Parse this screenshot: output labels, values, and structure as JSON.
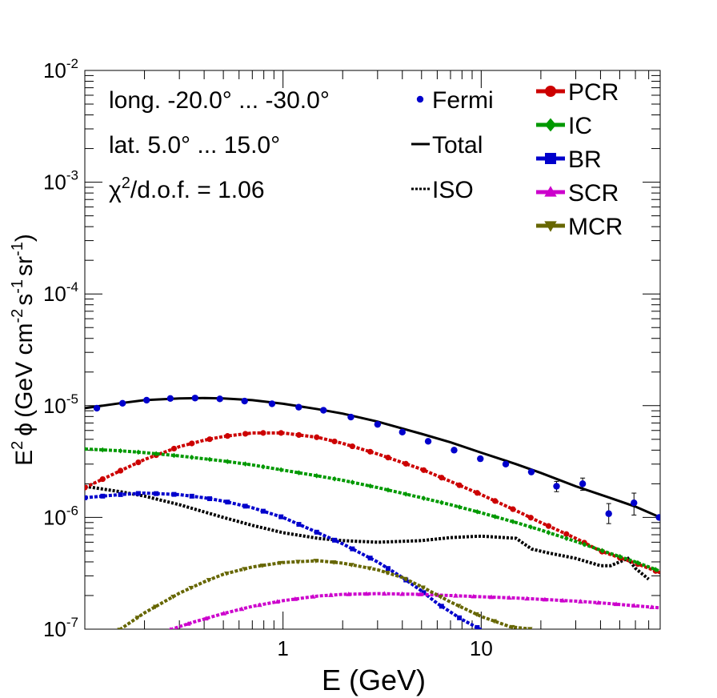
{
  "chart_data": {
    "type": "line",
    "xscale": "log",
    "yscale": "log",
    "xlim": [
      0.1,
      80
    ],
    "ylim": [
      1e-07,
      0.01
    ],
    "x_major_ticks": [
      1,
      10
    ],
    "x_tick_labels": [
      "1",
      "10"
    ],
    "y_major_ticks": [
      1e-07,
      1e-06,
      1e-05,
      0.0001,
      0.001,
      0.01
    ],
    "y_tick_labels": [
      {
        "base": "10",
        "exp": "-7"
      },
      {
        "base": "10",
        "exp": "-6"
      },
      {
        "base": "10",
        "exp": "-5"
      },
      {
        "base": "10",
        "exp": "-4"
      },
      {
        "base": "10",
        "exp": "-3"
      },
      {
        "base": "10",
        "exp": "-2"
      }
    ],
    "xlabel": "E (GeV)",
    "ylabel": {
      "prefix": "E",
      "prefix_sup": "2",
      "phi": "ϕ",
      "open": "(GeV cm",
      "sup1": "-2",
      "mid": "s",
      "sup2": "-1",
      "mid2": "sr",
      "sup3": "-1",
      "close": ")"
    },
    "annotations": {
      "longitude": "long. -20.0° ... -30.0°",
      "latitude": "lat. 5.0° ... 15.0°",
      "chi_symbol": "χ",
      "chi_sup": "2",
      "chi_rest": "/d.o.f. = 1.06"
    },
    "fermi": {
      "name": "Fermi",
      "color": "#0000cc",
      "x": [
        0.115,
        0.155,
        0.205,
        0.27,
        0.36,
        0.48,
        0.64,
        0.88,
        1.2,
        1.6,
        2.2,
        3.0,
        4.0,
        5.4,
        7.3,
        9.9,
        13.3,
        17.9,
        24,
        32.5,
        44,
        59,
        79
      ],
      "y": [
        9.5e-06,
        1.05e-05,
        1.12e-05,
        1.16e-05,
        1.17e-05,
        1.15e-05,
        1.1e-05,
        1.04e-05,
        9.7e-06,
        9.1e-06,
        7.9e-06,
        6.8e-06,
        5.8e-06,
        4.8e-06,
        4e-06,
        3.35e-06,
        3e-06,
        2.55e-06,
        1.9e-06,
        2e-06,
        1.08e-06,
        1.35e-06,
        1e-06
      ],
      "err_hi": [
        0,
        0,
        0,
        0,
        0,
        0,
        0,
        0,
        0,
        0,
        0,
        0,
        0,
        0,
        0,
        0,
        0,
        0,
        2e-07,
        2.5e-07,
        2.5e-07,
        3e-07,
        0
      ],
      "err_lo": [
        0,
        0,
        0,
        0,
        0,
        0,
        0,
        0,
        0,
        0,
        0,
        0,
        0,
        0,
        0,
        0,
        0,
        0,
        2e-07,
        2.5e-07,
        2e-07,
        3e-07,
        0
      ]
    },
    "series": [
      {
        "name": "Total",
        "color": "#000000",
        "style": "solid",
        "x": [
          0.1,
          0.15,
          0.2,
          0.3,
          0.4,
          0.5,
          0.7,
          1.0,
          1.5,
          2.0,
          3.0,
          5.0,
          7.0,
          10,
          15,
          20,
          30,
          40,
          60,
          80
        ],
        "y": [
          9.5e-06,
          1.05e-05,
          1.12e-05,
          1.16e-05,
          1.17e-05,
          1.16e-05,
          1.12e-05,
          1.04e-05,
          9.3e-06,
          8.5e-06,
          7.2e-06,
          5.6e-06,
          4.7e-06,
          3.8e-06,
          3e-06,
          2.5e-06,
          1.9e-06,
          1.6e-06,
          1.25e-06,
          1e-06
        ]
      },
      {
        "name": "ISO",
        "color": "#000000",
        "style": "dotted",
        "x": [
          0.1,
          0.15,
          0.2,
          0.3,
          0.4,
          0.5,
          0.7,
          1.0,
          1.5,
          2.0,
          3.0,
          5.0,
          7.0,
          10,
          15,
          18,
          22,
          30,
          40,
          45,
          55,
          60,
          70
        ],
        "y": [
          1.9e-06,
          1.7e-06,
          1.55e-06,
          1.3e-06,
          1.12e-06,
          1e-06,
          8.5e-07,
          7.3e-07,
          6.5e-07,
          6.2e-07,
          6e-07,
          6.2e-07,
          6.6e-07,
          6.8e-07,
          6.5e-07,
          5.2e-07,
          4.8e-07,
          4.3e-07,
          3.7e-07,
          3.7e-07,
          4.3e-07,
          3.5e-07,
          2.8e-07
        ]
      },
      {
        "name": "PCR",
        "color": "#cc0000",
        "style": "dashed",
        "marker": "circle",
        "x": [
          0.1,
          0.15,
          0.2,
          0.3,
          0.4,
          0.5,
          0.7,
          1.0,
          1.5,
          2.0,
          3.0,
          5.0,
          7.0,
          10,
          15,
          20,
          30,
          40,
          60,
          80
        ],
        "y": [
          1.85e-06,
          2.6e-06,
          3.3e-06,
          4.3e-06,
          4.9e-06,
          5.3e-06,
          5.7e-06,
          5.7e-06,
          5.2e-06,
          4.6e-06,
          3.7e-06,
          2.7e-06,
          2.1e-06,
          1.6e-06,
          1.15e-06,
          9e-07,
          6.5e-07,
          5e-07,
          3.9e-07,
          3.2e-07
        ]
      },
      {
        "name": "IC",
        "color": "#009900",
        "style": "dashed",
        "marker": "diamond",
        "x": [
          0.1,
          0.15,
          0.2,
          0.3,
          0.5,
          0.7,
          1.0,
          1.5,
          2.0,
          3.0,
          5.0,
          7.0,
          10,
          15,
          20,
          30,
          40,
          60,
          80
        ],
        "y": [
          4.1e-06,
          3.95e-06,
          3.8e-06,
          3.55e-06,
          3.2e-06,
          2.95e-06,
          2.65e-06,
          2.35e-06,
          2.15e-06,
          1.85e-06,
          1.5e-06,
          1.3e-06,
          1.1e-06,
          9e-07,
          7.7e-07,
          6.1e-07,
          5.1e-07,
          4e-07,
          3.3e-07
        ]
      },
      {
        "name": "BR",
        "color": "#0000cc",
        "style": "dashed",
        "marker": "square",
        "x": [
          0.1,
          0.15,
          0.2,
          0.3,
          0.4,
          0.5,
          0.7,
          1.0,
          1.5,
          2.0,
          3.0,
          4.0,
          5.0,
          6.0,
          8.0,
          10
        ],
        "y": [
          1.5e-06,
          1.6e-06,
          1.65e-06,
          1.6e-06,
          1.5e-06,
          1.4e-06,
          1.22e-06,
          1e-06,
          7.3e-07,
          5.8e-07,
          4e-07,
          2.9e-07,
          2.2e-07,
          1.7e-07,
          1.22e-07,
          9.9e-08
        ]
      },
      {
        "name": "SCR",
        "color": "#cc00cc",
        "style": "dashed",
        "marker": "triangle-up",
        "x": [
          0.27,
          0.35,
          0.5,
          0.7,
          1.0,
          1.5,
          2.0,
          3.0,
          5.0,
          7.0,
          10,
          15,
          20,
          30,
          40,
          60,
          80
        ],
        "y": [
          9.9e-08,
          1.15e-07,
          1.38e-07,
          1.6e-07,
          1.8e-07,
          1.98e-07,
          2.05e-07,
          2.08e-07,
          2.05e-07,
          2e-07,
          1.95e-07,
          1.9e-07,
          1.85e-07,
          1.78e-07,
          1.72e-07,
          1.62e-07,
          1.55e-07
        ]
      },
      {
        "name": "MCR",
        "color": "#666600",
        "style": "dashed",
        "marker": "triangle-down",
        "x": [
          0.15,
          0.2,
          0.3,
          0.4,
          0.5,
          0.7,
          1.0,
          1.5,
          2.0,
          3.0,
          4.0,
          5.0,
          7.0,
          10,
          14,
          18
        ],
        "y": [
          9.9e-08,
          1.4e-07,
          2.1e-07,
          2.65e-07,
          3.1e-07,
          3.6e-07,
          3.95e-07,
          4.1e-07,
          3.9e-07,
          3.4e-07,
          2.9e-07,
          2.4e-07,
          1.75e-07,
          1.3e-07,
          1.05e-07,
          1e-07
        ]
      }
    ],
    "legend_left": [
      {
        "name": "Fermi",
        "marker": "dot",
        "color": "#0000cc"
      },
      {
        "name": "Total",
        "marker": "solid",
        "color": "#000000"
      },
      {
        "name": "ISO",
        "marker": "dotted",
        "color": "#000000"
      }
    ],
    "legend_right": [
      {
        "name": "PCR",
        "marker": "circle",
        "color": "#cc0000"
      },
      {
        "name": "IC",
        "marker": "diamond",
        "color": "#009900"
      },
      {
        "name": "BR",
        "marker": "square",
        "color": "#0000cc"
      },
      {
        "name": "SCR",
        "marker": "triangle-up",
        "color": "#cc00cc"
      },
      {
        "name": "MCR",
        "marker": "triangle-down",
        "color": "#666600"
      }
    ]
  }
}
